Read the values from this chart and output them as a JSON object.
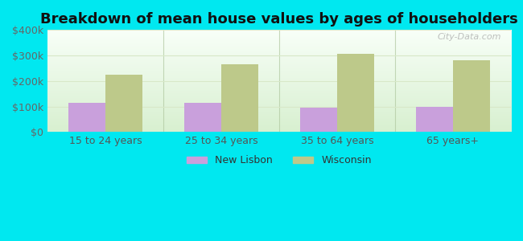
{
  "title": "Breakdown of mean house values by ages of householders",
  "categories": [
    "15 to 24 years",
    "25 to 34 years",
    "35 to 64 years",
    "65 years+"
  ],
  "new_lisbon": [
    115000,
    115000,
    95000,
    100000
  ],
  "wisconsin": [
    225000,
    265000,
    305000,
    280000
  ],
  "new_lisbon_color": "#c9a0dc",
  "wisconsin_color": "#bdc98a",
  "background_color": "#00e8f0",
  "plot_bg_color": "#e8f5e0",
  "ylim": [
    0,
    400000
  ],
  "yticks": [
    0,
    100000,
    200000,
    300000,
    400000
  ],
  "ytick_labels": [
    "$0",
    "$100k",
    "$200k",
    "$300k",
    "$400k"
  ],
  "bar_width": 0.32,
  "legend_new_lisbon": "New Lisbon",
  "legend_wisconsin": "Wisconsin",
  "title_fontsize": 13,
  "tick_fontsize": 9,
  "legend_fontsize": 9,
  "watermark": "City-Data.com",
  "grid_color": "#d8e8c8",
  "separator_color": "#b0c8a0"
}
